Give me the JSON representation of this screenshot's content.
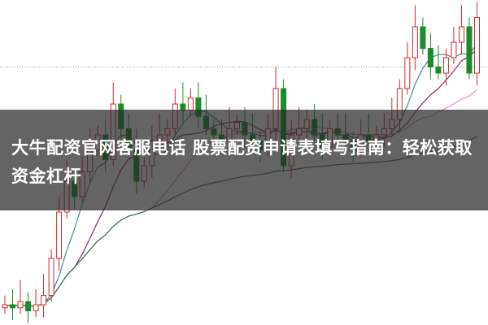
{
  "headline": "大牛配资官网客服电话 股票配资申请表填写指南：轻松获取资金杠杆",
  "chart_data": {
    "type": "candlestick",
    "title": "",
    "xlabel": "",
    "ylabel": "",
    "ylim": [
      0,
      100
    ],
    "grid": false,
    "reference_line": 82,
    "colors": {
      "up": "#d9262b",
      "down": "#1a8c2a",
      "ma5": "#3a8fa0",
      "ma10": "#8a2a6a",
      "ma20": "#e58fd8",
      "ma60": "#2c7a3a"
    },
    "closes": [
      5,
      4,
      6,
      3,
      5,
      8,
      20,
      35,
      45,
      40,
      48,
      55,
      60,
      52,
      70,
      62,
      55,
      45,
      50,
      58,
      60,
      62,
      70,
      68,
      72,
      66,
      62,
      60,
      58,
      62,
      64,
      60,
      58,
      55,
      62,
      75,
      50,
      60,
      62,
      65,
      60,
      56,
      62,
      60,
      58,
      55,
      60,
      58,
      60,
      62,
      65,
      75,
      85,
      95,
      88,
      82,
      80,
      85,
      90,
      95,
      80,
      98
    ],
    "moving_averages": [
      5,
      10,
      20,
      60
    ]
  }
}
